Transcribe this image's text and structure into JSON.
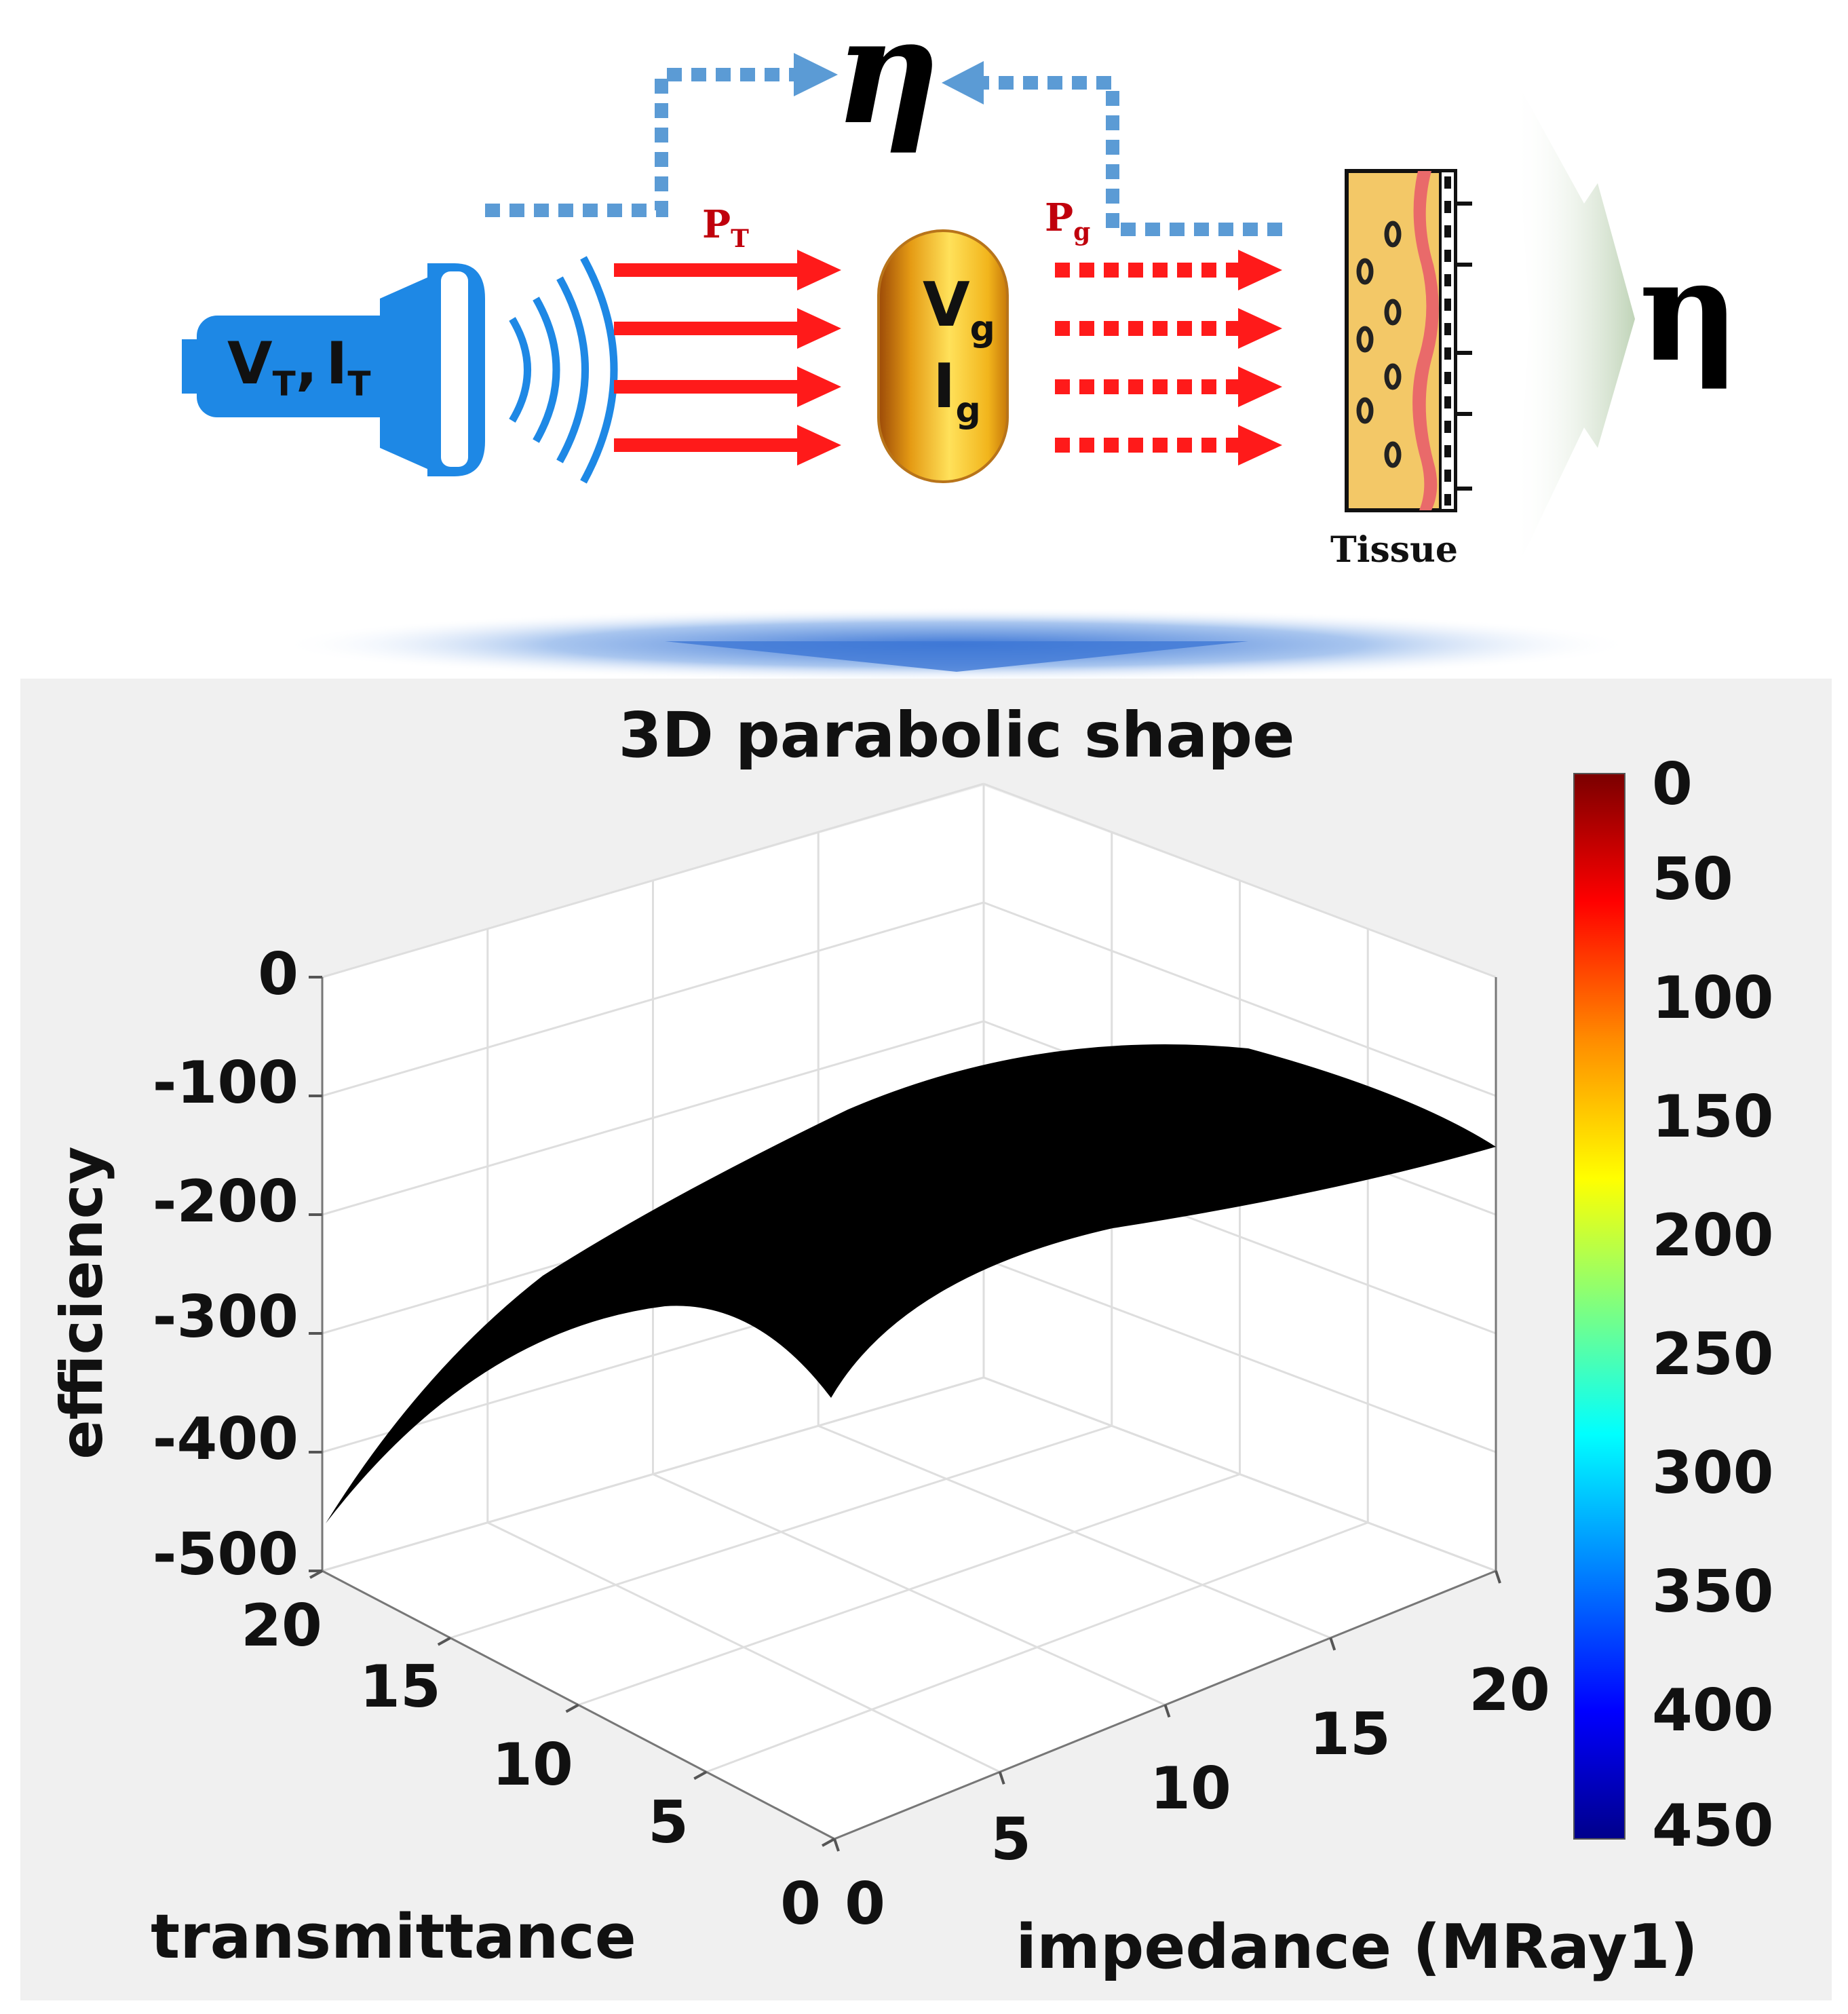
{
  "diagram": {
    "eta_top": "η",
    "eta_right": "η",
    "transducer_label": "VT, IT",
    "transducer_v": "V",
    "transducer_v_sub": "T",
    "transducer_comma": ",",
    "transducer_i": "I",
    "transducer_i_sub": "T",
    "pt_label": "P",
    "pt_sub": "T",
    "pg_label": "P",
    "pg_sub": "g",
    "capsule_v": "V",
    "capsule_v_sub": "g",
    "capsule_i": "I",
    "capsule_i_sub": "g",
    "tissue_label": "Tissue",
    "colors": {
      "transducer": "#1e88e5",
      "power_arrow": "#ff1a1a",
      "feedback_arrow": "#5b9bd5",
      "capsule": "#f2b51c",
      "tissue": "#f3c867",
      "eta_arrow": "#b9cfb0"
    }
  },
  "chart_data": {
    "type": "surface",
    "title": "3D parabolic shape",
    "xlabel": "impedance (MRay1)",
    "ylabel": "transmittance",
    "zlabel": "efficiency",
    "xlim": [
      0,
      20
    ],
    "ylim": [
      0,
      20
    ],
    "zlim": [
      -500,
      0
    ],
    "x_ticks": [
      "0",
      "5",
      "10",
      "15",
      "20"
    ],
    "y_ticks": [
      "0",
      "5",
      "10",
      "15",
      "20"
    ],
    "z_ticks": [
      "0",
      "-100",
      "-200",
      "-300",
      "-400",
      "-500"
    ],
    "colorbar_ticks": [
      "0",
      "50",
      "100",
      "150",
      "200",
      "250",
      "300",
      "350",
      "400",
      "450"
    ],
    "colorbar_colors": [
      "#7a0000",
      "#ff0000",
      "#ff8c00",
      "#ffff00",
      "#7fff7f",
      "#00ffff",
      "#0080ff",
      "#0000ff",
      "#00008b"
    ],
    "surface_color": "#000000",
    "grid": true
  }
}
